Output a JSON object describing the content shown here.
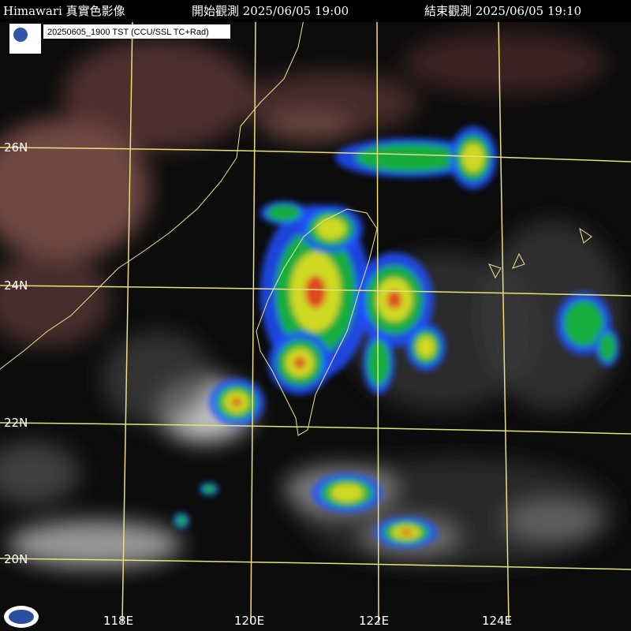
{
  "header": {
    "title": "Himawari 真實色影像",
    "start": "開始觀測 2025/06/05 19:00",
    "end": "結束觀測 2025/06/05 19:10"
  },
  "info_label": "20250605_1900 TST (CCU/SSL TC+Rad)",
  "latitudes": [
    "26N",
    "24N",
    "22N",
    "20N"
  ],
  "longitudes": [
    "118E",
    "120E",
    "122E",
    "124E"
  ]
}
